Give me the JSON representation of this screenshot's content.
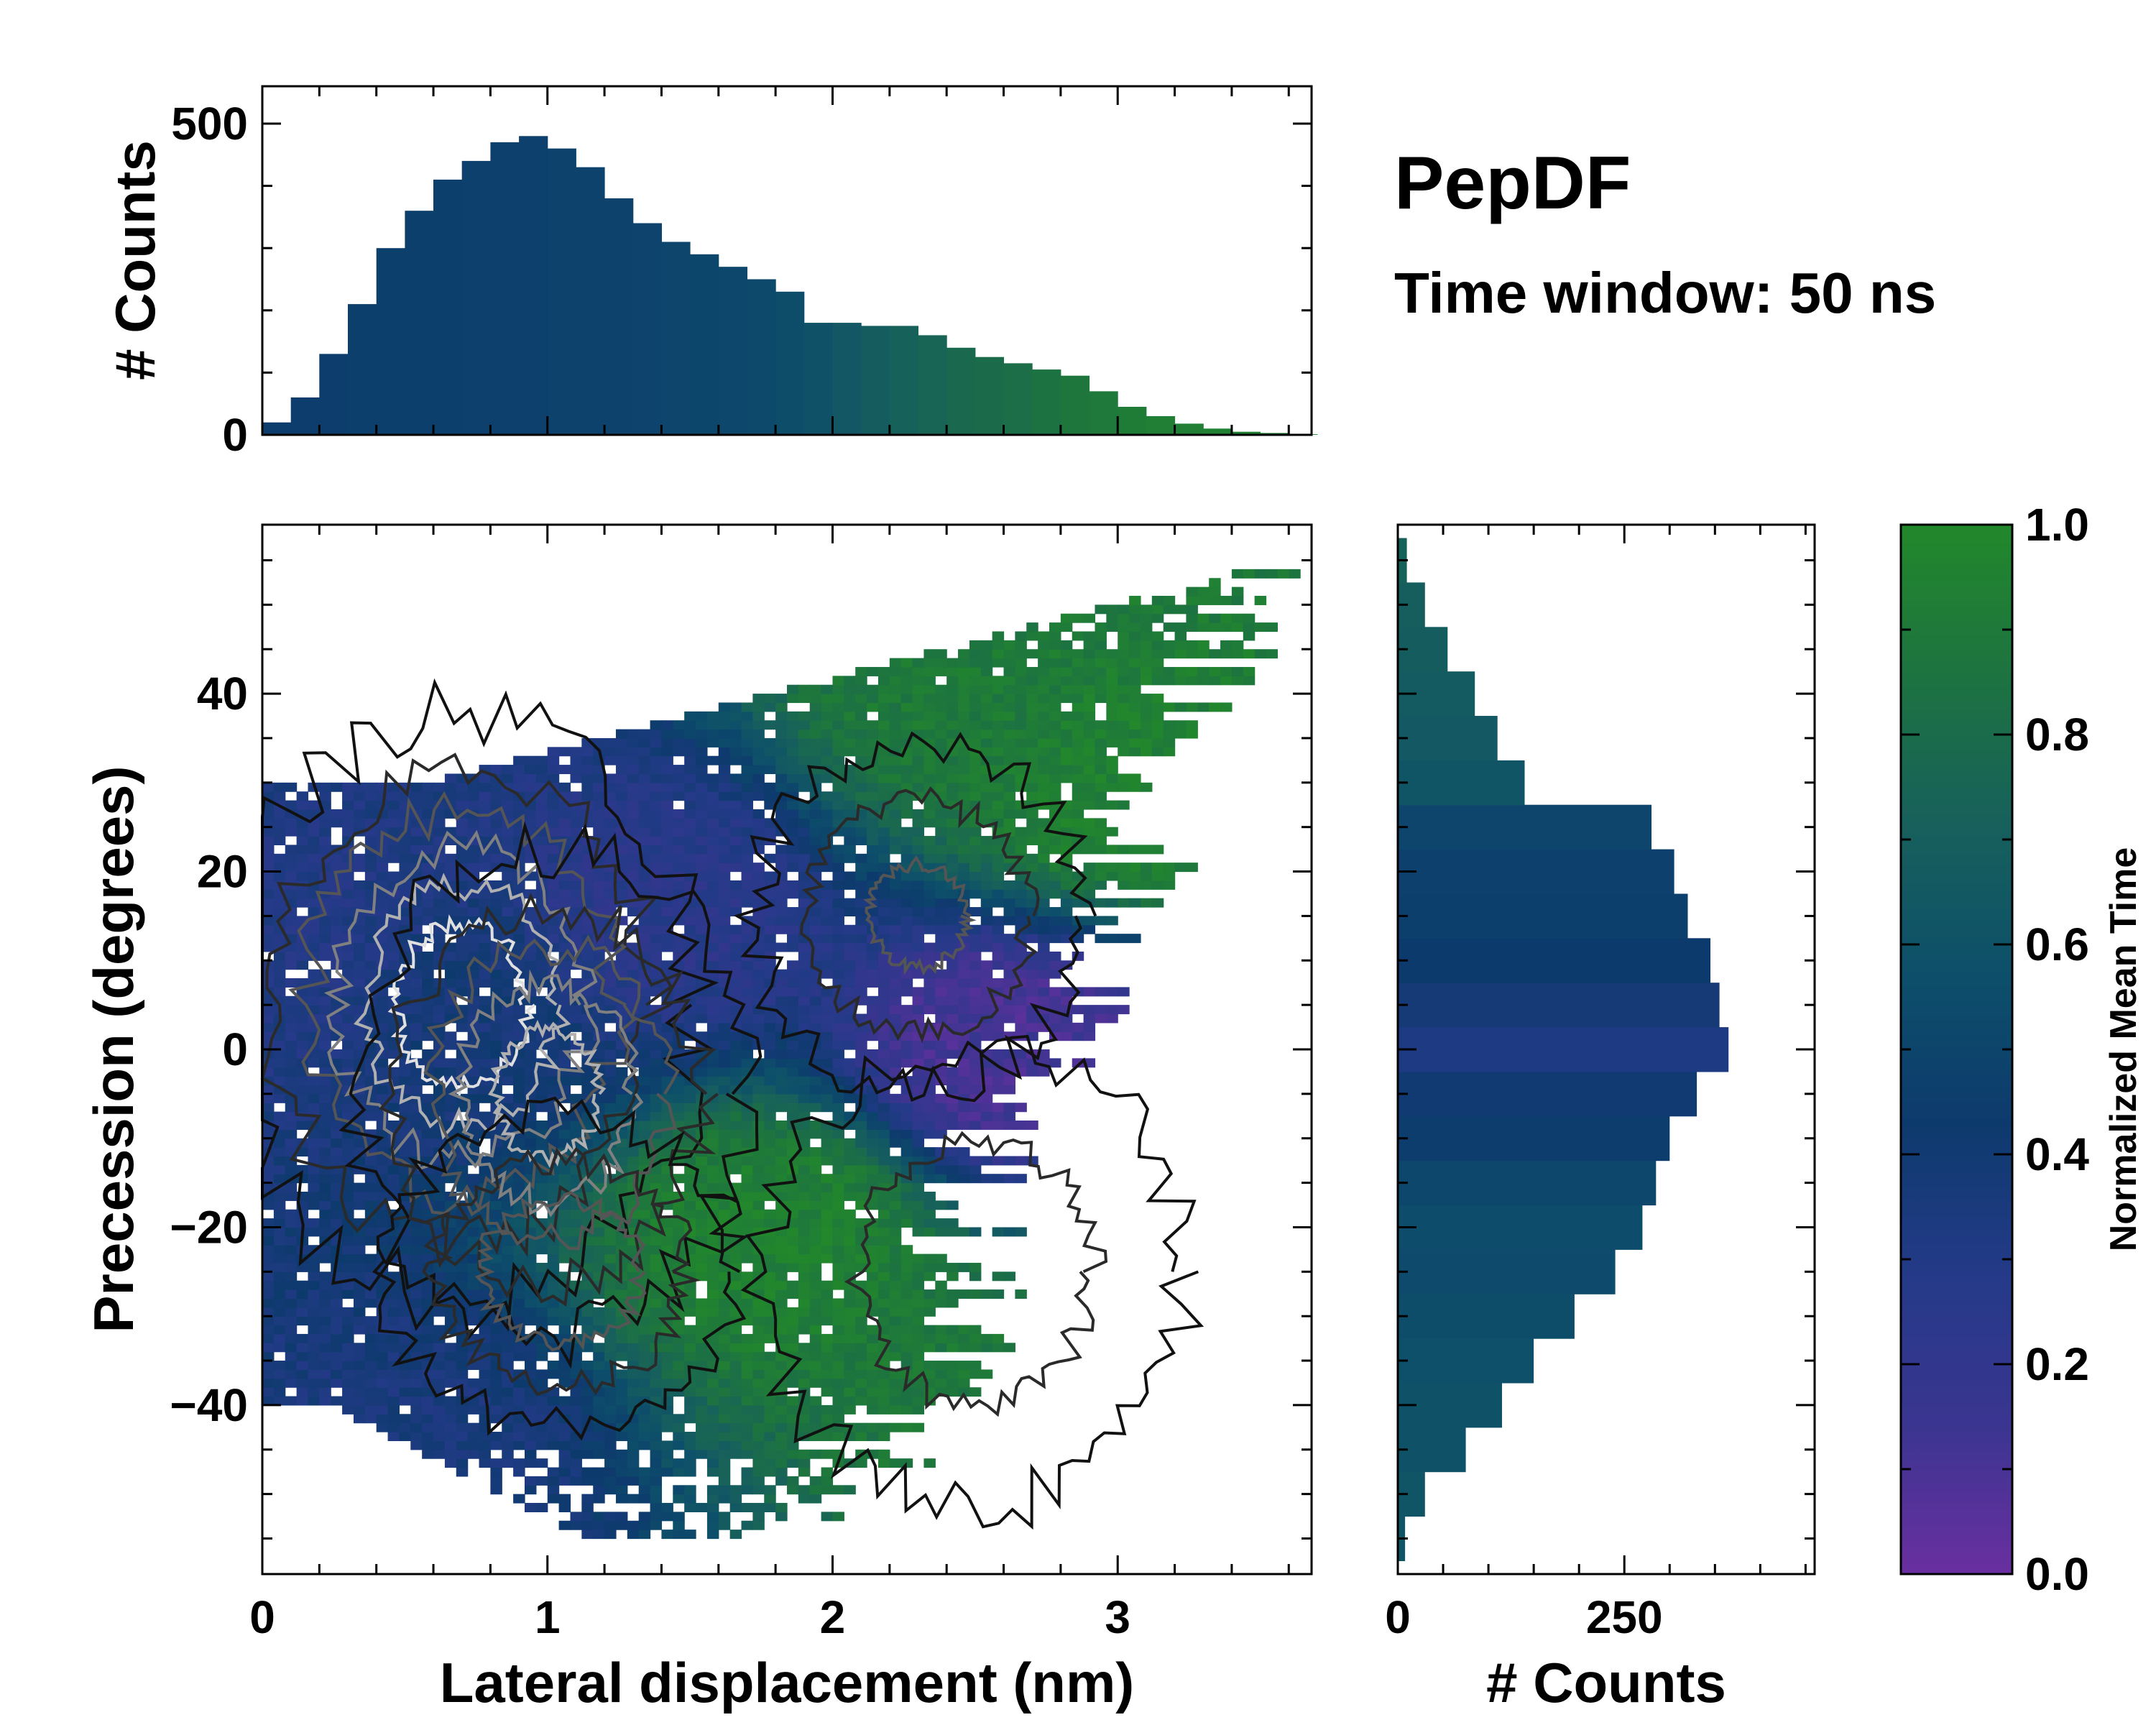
{
  "figure": {
    "title": "PepDF",
    "subtitle": "Time window: 50 ns"
  },
  "colors": {
    "cmap": [
      "#6a2fa0",
      "#3a3590",
      "#243a88",
      "#0d3a6d",
      "#0d4f6a",
      "#17605c",
      "#1d7340",
      "#22882b"
    ],
    "contour_dark": "#111111",
    "contour_light": "#e0e0e0"
  },
  "chart_data": [
    {
      "id": "joint",
      "type": "heatmap",
      "title": "",
      "xlabel": "Lateral displacement (nm)",
      "ylabel": "Precession (degrees)",
      "xlim": [
        0,
        3.68
      ],
      "ylim": [
        -59,
        59
      ],
      "xticks": [
        0,
        1,
        2,
        3
      ],
      "xtick_labels": [
        "0",
        "1",
        "2",
        "3"
      ],
      "yticks": [
        -40,
        -20,
        0,
        20,
        40
      ],
      "ytick_labels": [
        "−40",
        "−20",
        "0",
        "20",
        "40"
      ],
      "colorbar": {
        "label": "Normalized Mean Time",
        "range": [
          0,
          1
        ],
        "ticks": [
          0.0,
          0.2,
          0.4,
          0.6,
          0.8,
          1.0
        ],
        "tick_labels": [
          "0.0",
          "0.2",
          "0.4",
          "0.6",
          "0.8",
          "1.0"
        ]
      },
      "density_peaks": [
        {
          "x": 0.7,
          "y": 5,
          "sx": 0.4,
          "sy": 16,
          "w": 1.0
        },
        {
          "x": 1.0,
          "y": -5,
          "sx": 0.35,
          "sy": 14,
          "w": 0.8
        },
        {
          "x": 1.05,
          "y": -25,
          "sx": 0.35,
          "sy": 10,
          "w": 0.55
        },
        {
          "x": 2.3,
          "y": 15,
          "sx": 0.35,
          "sy": 12,
          "w": 0.45
        },
        {
          "x": 2.5,
          "y": -25,
          "sx": 0.5,
          "sy": 18,
          "w": 0.35
        }
      ],
      "mean_time_regions": [
        {
          "x": 0.2,
          "y": 10,
          "v": 0.3
        },
        {
          "x": 0.7,
          "y": 5,
          "v": 0.38
        },
        {
          "x": 1.4,
          "y": 15,
          "v": 0.25
        },
        {
          "x": 2.6,
          "y": 0,
          "v": 0.1
        },
        {
          "x": 1.8,
          "y": -20,
          "v": 0.95
        },
        {
          "x": 2.5,
          "y": 40,
          "v": 0.9
        },
        {
          "x": 3.0,
          "y": 30,
          "v": 0.95
        },
        {
          "x": 2.8,
          "y": -40,
          "v": 0.9
        },
        {
          "x": 0.5,
          "y": -45,
          "v": 0.35
        }
      ]
    },
    {
      "id": "top_hist",
      "type": "bar",
      "ylabel": "# Counts",
      "xlim": [
        0,
        3.68
      ],
      "ylim": [
        0,
        560
      ],
      "yticks": [
        0,
        500
      ],
      "ytick_labels": [
        "0",
        "500"
      ],
      "x": [
        0.05,
        0.15,
        0.25,
        0.35,
        0.45,
        0.55,
        0.65,
        0.75,
        0.85,
        0.95,
        1.05,
        1.15,
        1.25,
        1.35,
        1.45,
        1.55,
        1.65,
        1.75,
        1.85,
        1.95,
        2.05,
        2.15,
        2.25,
        2.35,
        2.45,
        2.55,
        2.65,
        2.75,
        2.85,
        2.95,
        3.05,
        3.15,
        3.25,
        3.35,
        3.45,
        3.55,
        3.65
      ],
      "values": [
        20,
        60,
        130,
        210,
        300,
        360,
        410,
        440,
        470,
        480,
        460,
        430,
        380,
        340,
        310,
        290,
        270,
        250,
        230,
        180,
        180,
        175,
        175,
        160,
        140,
        125,
        115,
        105,
        95,
        70,
        45,
        30,
        18,
        10,
        5,
        3,
        1
      ],
      "mean_time": [
        0.45,
        0.45,
        0.45,
        0.46,
        0.46,
        0.46,
        0.46,
        0.47,
        0.47,
        0.47,
        0.48,
        0.48,
        0.48,
        0.49,
        0.5,
        0.51,
        0.52,
        0.53,
        0.56,
        0.6,
        0.64,
        0.68,
        0.72,
        0.75,
        0.78,
        0.8,
        0.82,
        0.85,
        0.88,
        0.9,
        0.92,
        0.93,
        0.94,
        0.95,
        0.95,
        0.95,
        0.95
      ]
    },
    {
      "id": "right_hist",
      "type": "bar",
      "orientation": "horizontal",
      "xlabel": "# Counts",
      "xlim": [
        0,
        460
      ],
      "xticks": [
        0,
        250
      ],
      "xtick_labels": [
        "0",
        "250"
      ],
      "ylim": [
        -59,
        59
      ],
      "y": [
        -55,
        -50,
        -45,
        -40,
        -35,
        -30,
        -25,
        -20,
        -15,
        -10,
        -5,
        0,
        5,
        10,
        15,
        20,
        25,
        30,
        35,
        40,
        45,
        50,
        55
      ],
      "values": [
        8,
        30,
        75,
        115,
        150,
        195,
        240,
        270,
        285,
        300,
        330,
        365,
        355,
        345,
        320,
        305,
        280,
        140,
        110,
        85,
        55,
        30,
        10
      ],
      "mean_time": [
        0.62,
        0.62,
        0.6,
        0.6,
        0.58,
        0.56,
        0.54,
        0.55,
        0.52,
        0.45,
        0.4,
        0.32,
        0.38,
        0.43,
        0.46,
        0.47,
        0.5,
        0.62,
        0.65,
        0.66,
        0.68,
        0.7,
        0.72
      ]
    }
  ]
}
